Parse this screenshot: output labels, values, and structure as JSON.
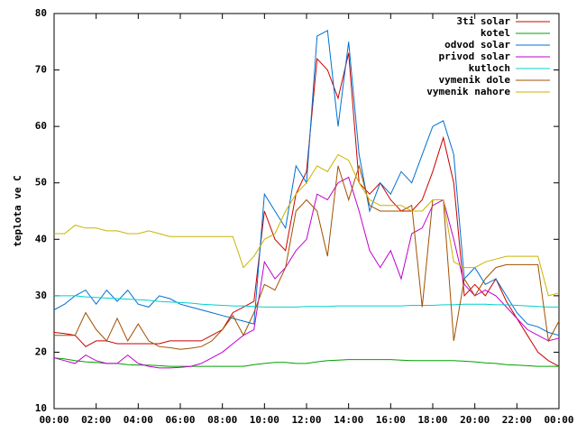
{
  "chart_data": {
    "type": "line",
    "ylabel": "teplota ve C",
    "x": [
      0,
      0.5,
      1,
      1.5,
      2,
      2.5,
      3,
      3.5,
      4,
      4.5,
      5,
      5.5,
      6,
      6.5,
      7,
      7.5,
      8,
      8.5,
      9,
      9.5,
      10,
      10.5,
      11,
      11.5,
      12,
      12.5,
      13,
      13.5,
      14,
      14.5,
      15,
      15.5,
      16,
      16.5,
      17,
      17.5,
      18,
      18.5,
      19,
      19.5,
      20,
      20.5,
      21,
      21.5,
      22,
      22.5,
      23,
      23.5,
      24
    ],
    "xlim": [
      0,
      24
    ],
    "xticks": [
      {
        "value": 0,
        "label": "00:00"
      },
      {
        "value": 2,
        "label": "02:00"
      },
      {
        "value": 4,
        "label": "04:00"
      },
      {
        "value": 6,
        "label": "06:00"
      },
      {
        "value": 8,
        "label": "08:00"
      },
      {
        "value": 10,
        "label": "10:00"
      },
      {
        "value": 12,
        "label": "12:00"
      },
      {
        "value": 14,
        "label": "14:00"
      },
      {
        "value": 16,
        "label": "16:00"
      },
      {
        "value": 18,
        "label": "18:00"
      },
      {
        "value": 20,
        "label": "20:00"
      },
      {
        "value": 22,
        "label": "22:00"
      },
      {
        "value": 24,
        "label": "00:00"
      }
    ],
    "ylim": [
      10,
      80
    ],
    "yticks": [
      10,
      20,
      30,
      40,
      50,
      60,
      70,
      80
    ],
    "legend": "top-right",
    "series": [
      {
        "name": "3ti solar",
        "color": "#cc0000",
        "values": [
          23.5,
          23.3,
          23,
          21,
          22,
          22,
          21.5,
          21.5,
          21.5,
          21.5,
          21.5,
          22,
          22,
          22,
          22,
          23,
          24,
          27,
          28,
          29,
          45,
          40,
          38,
          48,
          52,
          72,
          70,
          65,
          73,
          50,
          48,
          50,
          47,
          45,
          45,
          47,
          52,
          58,
          50,
          30,
          32,
          30,
          33,
          29,
          26,
          23,
          20,
          18.5,
          17.5
        ]
      },
      {
        "name": "kotel",
        "color": "#00a000",
        "values": [
          19,
          18.8,
          18.5,
          18.3,
          18.2,
          18,
          18,
          17.8,
          17.7,
          17.7,
          17.6,
          17.5,
          17.5,
          17.5,
          17.5,
          17.5,
          17.5,
          17.5,
          17.5,
          17.8,
          18,
          18.2,
          18.2,
          18,
          18,
          18.3,
          18.5,
          18.6,
          18.7,
          18.7,
          18.7,
          18.7,
          18.7,
          18.6,
          18.5,
          18.5,
          18.5,
          18.5,
          18.5,
          18.4,
          18.3,
          18.1,
          18,
          17.8,
          17.7,
          17.6,
          17.5,
          17.5,
          17.5
        ]
      },
      {
        "name": "odvod solar",
        "color": "#0070d0",
        "values": [
          27.5,
          28.5,
          30,
          31,
          28.5,
          31,
          29,
          31,
          28.5,
          28,
          30,
          29.5,
          28.5,
          28,
          27.5,
          27,
          26.5,
          26,
          25.5,
          25,
          48,
          45,
          42,
          53,
          50,
          76,
          77,
          60,
          75,
          55,
          45,
          50,
          48,
          52,
          50,
          55,
          60,
          61,
          55,
          33,
          35,
          32,
          33,
          30,
          27,
          25,
          24.5,
          23.5,
          23
        ]
      },
      {
        "name": "privod solar",
        "color": "#c000d0",
        "values": [
          19,
          18.5,
          18,
          19.5,
          18.5,
          18,
          18,
          19.5,
          18,
          17.5,
          17.2,
          17.2,
          17.3,
          17.5,
          18,
          19,
          20,
          21.5,
          23,
          24,
          36,
          33,
          35,
          38,
          40,
          48,
          47,
          50,
          51,
          45,
          38,
          35,
          38,
          33,
          41,
          42,
          46,
          47,
          40,
          32,
          30,
          31,
          30,
          28,
          26,
          24,
          23,
          22,
          22.5
        ]
      },
      {
        "name": "kutloch",
        "color": "#00d0d0",
        "values": [
          30,
          30,
          30,
          29.8,
          29.7,
          29.6,
          29.5,
          29.4,
          29.3,
          29.2,
          29,
          28.9,
          28.8,
          28.7,
          28.5,
          28.4,
          28.3,
          28.2,
          28.2,
          28.1,
          28,
          28,
          28,
          28,
          28.1,
          28.1,
          28.1,
          28.2,
          28.2,
          28.2,
          28.2,
          28.2,
          28.2,
          28.2,
          28.3,
          28.3,
          28.3,
          28.4,
          28.4,
          28.5,
          28.5,
          28.5,
          28.4,
          28.4,
          28.3,
          28.2,
          28.1,
          28,
          28
        ]
      },
      {
        "name": "vymenik dole",
        "color": "#a05000",
        "values": [
          23,
          23,
          23,
          27,
          24,
          22,
          26,
          22,
          25,
          22,
          21,
          20.8,
          20.5,
          20.7,
          21,
          22,
          24,
          26.5,
          23,
          27,
          32,
          31,
          35,
          45,
          47,
          45,
          37,
          53,
          47,
          53,
          46,
          45,
          45,
          45,
          46,
          28,
          47,
          47,
          22,
          33,
          30,
          33,
          35,
          35.5,
          35.5,
          35.5,
          35.5,
          22,
          25.5
        ]
      },
      {
        "name": "vymenik nahore",
        "color": "#c8b400",
        "values": [
          41,
          41,
          42.5,
          42,
          42,
          41.5,
          41.5,
          41,
          41,
          41.5,
          41,
          40.5,
          40.5,
          40.5,
          40.5,
          40.5,
          40.5,
          40.5,
          35,
          37,
          40,
          41,
          45,
          48,
          50,
          53,
          52,
          55,
          54,
          50,
          47,
          46,
          46,
          46,
          45,
          45,
          47,
          47,
          36,
          35,
          35,
          36,
          36.5,
          37,
          37,
          37,
          37,
          30,
          30.5
        ]
      }
    ]
  }
}
